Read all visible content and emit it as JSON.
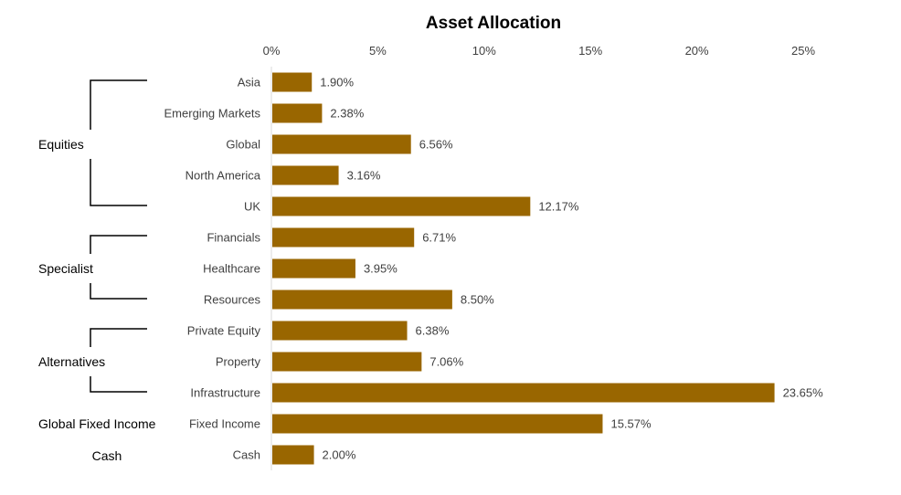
{
  "chart_data": {
    "type": "bar",
    "orientation": "horizontal",
    "title": "Asset Allocation",
    "xlim": [
      0,
      25
    ],
    "xticks": [
      0,
      5,
      10,
      15,
      20,
      25
    ],
    "xtick_labels": [
      "0%",
      "5%",
      "10%",
      "15%",
      "20%",
      "25%"
    ],
    "xaxis_position": "top",
    "grid": false,
    "legend": "none",
    "bar_color": "#996600",
    "categories": [
      "Asia",
      "Emerging Markets",
      "Global",
      "North America",
      "UK",
      "Financials",
      "Healthcare",
      "Resources",
      "Private Equity",
      "Property",
      "Infrastructure",
      "Fixed Income",
      "Cash"
    ],
    "values": [
      1.9,
      2.38,
      6.56,
      3.16,
      12.17,
      6.71,
      3.95,
      8.5,
      6.38,
      7.06,
      23.65,
      15.57,
      2.0
    ],
    "value_labels": [
      "1.90%",
      "2.38%",
      "6.56%",
      "3.16%",
      "12.17%",
      "6.71%",
      "3.95%",
      "8.50%",
      "6.38%",
      "7.06%",
      "23.65%",
      "15.57%",
      "2.00%"
    ],
    "groups": [
      {
        "name": "Equities",
        "start": 0,
        "end": 4,
        "bracket": true
      },
      {
        "name": "Specialist",
        "start": 5,
        "end": 7,
        "bracket": true
      },
      {
        "name": "Alternatives",
        "start": 8,
        "end": 10,
        "bracket": true
      },
      {
        "name": "Global Fixed Income",
        "start": 11,
        "end": 11,
        "bracket": false
      },
      {
        "name": "Cash",
        "start": 12,
        "end": 12,
        "bracket": false
      }
    ]
  }
}
